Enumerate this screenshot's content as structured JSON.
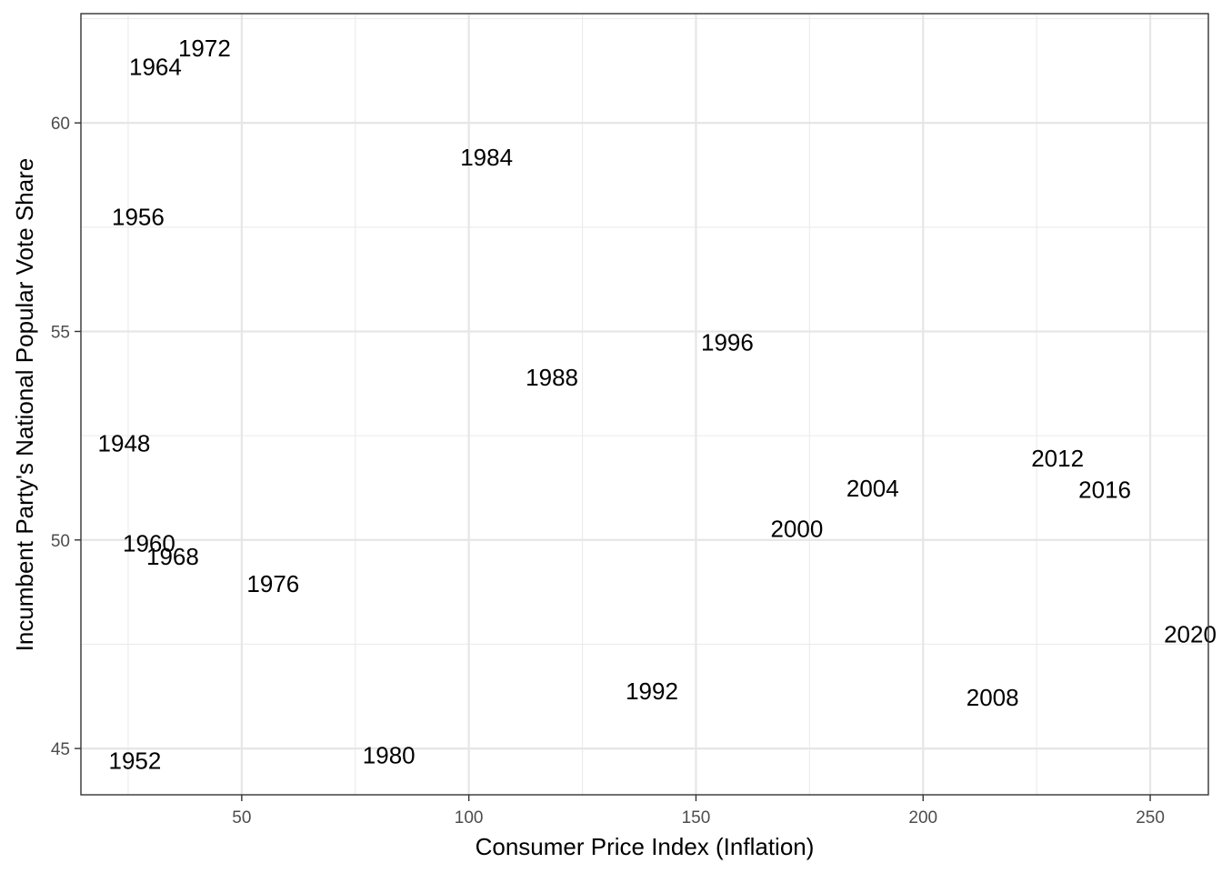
{
  "chart_data": {
    "type": "scatter",
    "title": "",
    "xlabel": "Consumer Price Index (Inflation)",
    "ylabel": "Incumbent Party's National Popular Vote Share",
    "xlim": [
      14.6,
      262.8
    ],
    "ylim": [
      43.89,
      62.62
    ],
    "x_ticks": [
      50,
      100,
      150,
      200,
      250
    ],
    "y_ticks": [
      45,
      50,
      55,
      60
    ],
    "x_tick_labels": [
      "50",
      "100",
      "150",
      "200",
      "250"
    ],
    "y_tick_labels": [
      "45",
      "50",
      "55",
      "60"
    ],
    "grid": true,
    "marker": "year text labels",
    "points": [
      {
        "label": "1948",
        "x": 24.1,
        "y": 52.32
      },
      {
        "label": "1952",
        "x": 26.5,
        "y": 44.71
      },
      {
        "label": "1956",
        "x": 27.2,
        "y": 57.75
      },
      {
        "label": "1960",
        "x": 29.6,
        "y": 49.92
      },
      {
        "label": "1964",
        "x": 31.0,
        "y": 61.34
      },
      {
        "label": "1968",
        "x": 34.8,
        "y": 49.6
      },
      {
        "label": "1972",
        "x": 41.8,
        "y": 61.79
      },
      {
        "label": "1976",
        "x": 56.9,
        "y": 48.95
      },
      {
        "label": "1980",
        "x": 82.4,
        "y": 44.84
      },
      {
        "label": "1984",
        "x": 103.9,
        "y": 59.17
      },
      {
        "label": "1988",
        "x": 118.3,
        "y": 53.9
      },
      {
        "label": "1992",
        "x": 140.3,
        "y": 46.38
      },
      {
        "label": "1996",
        "x": 156.9,
        "y": 54.74
      },
      {
        "label": "2000",
        "x": 172.2,
        "y": 50.27
      },
      {
        "label": "2004",
        "x": 188.9,
        "y": 51.24
      },
      {
        "label": "2008",
        "x": 215.3,
        "y": 46.22
      },
      {
        "label": "2012",
        "x": 229.6,
        "y": 51.96
      },
      {
        "label": "2016",
        "x": 240.0,
        "y": 51.21
      },
      {
        "label": "2020",
        "x": 258.8,
        "y": 47.74
      }
    ]
  }
}
